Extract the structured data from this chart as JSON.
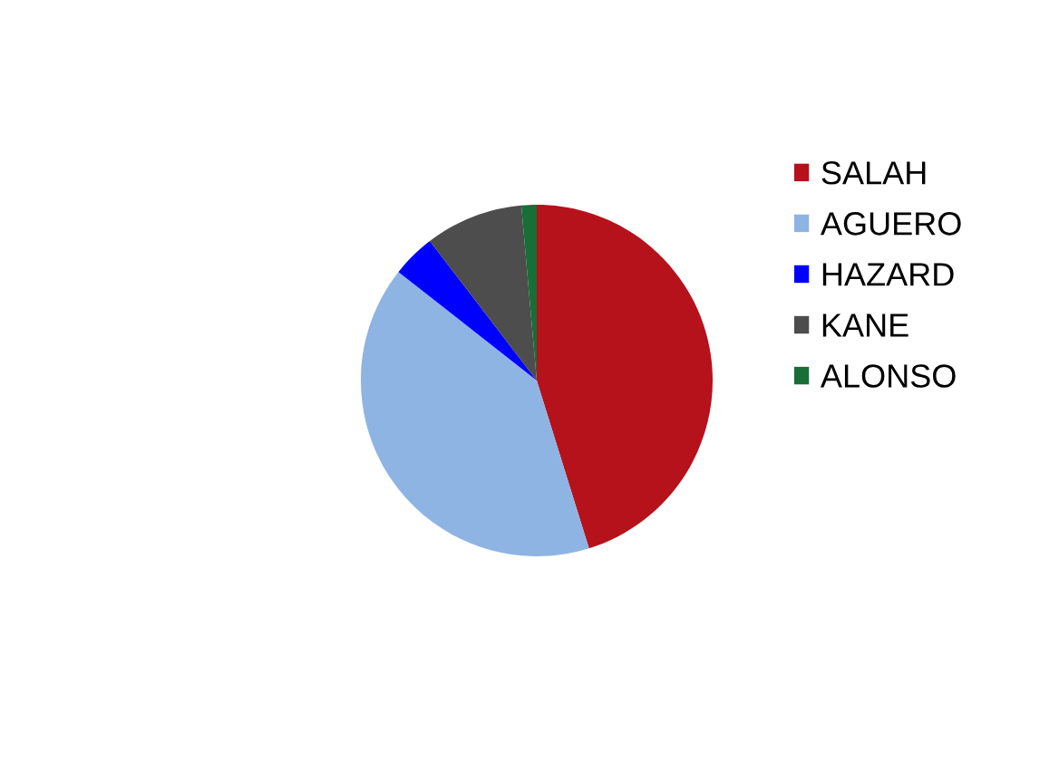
{
  "chart_data": {
    "type": "pie",
    "categories": [
      "SALAH",
      "AGUERO",
      "HAZARD",
      "KANE",
      "ALONSO"
    ],
    "values": [
      45.2,
      40.4,
      4.0,
      9.0,
      1.4
    ],
    "colors": [
      "#b5121b",
      "#8eb4e3",
      "#0000ff",
      "#4d4d4d",
      "#176e37"
    ],
    "legend": "right"
  }
}
